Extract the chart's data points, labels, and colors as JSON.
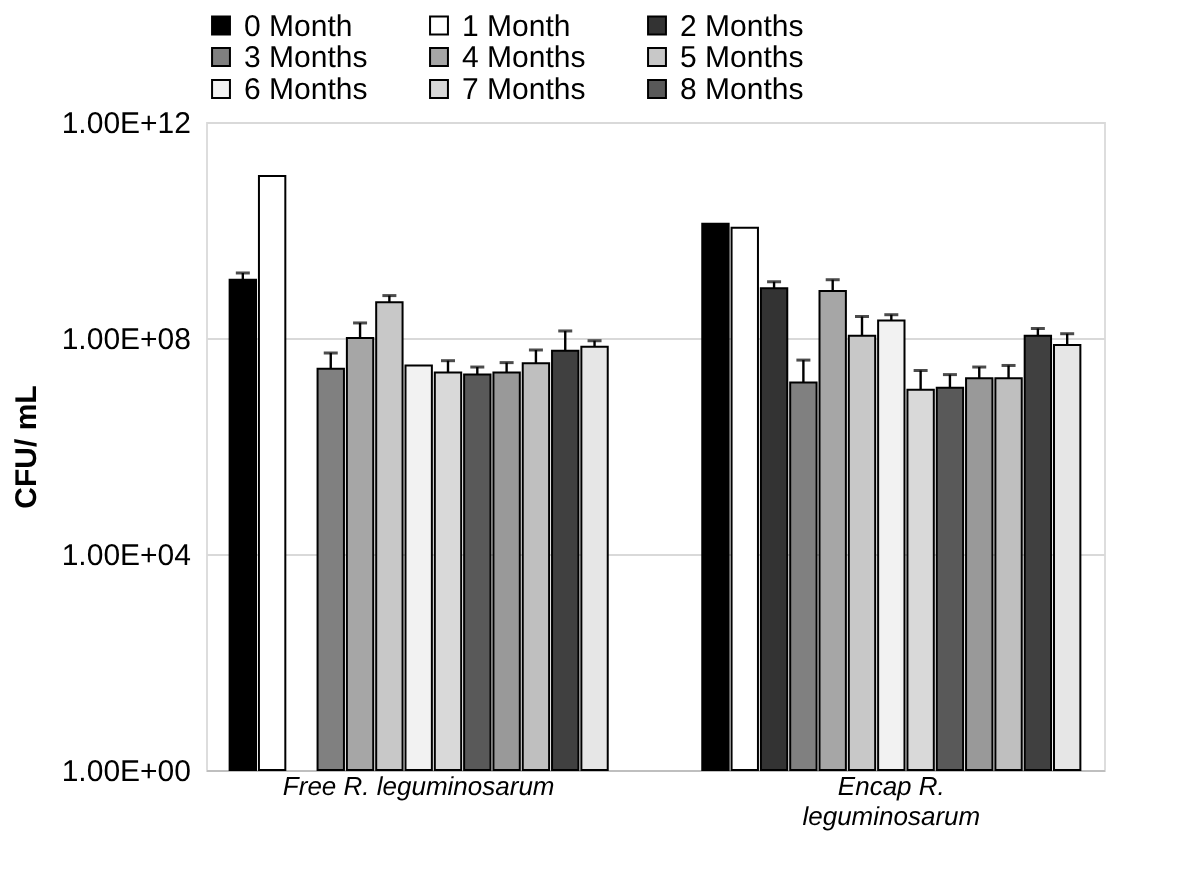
{
  "chart_data": {
    "type": "bar",
    "ylabel": "CFU/ mL",
    "categories": [
      "Free R. leguminosarum",
      "Encap R. leguminosarum"
    ],
    "log": true,
    "ylim": [
      1,
      1000000000000.0
    ],
    "yticks": [
      {
        "value": 1,
        "label": "1.00E+00"
      },
      {
        "value": 10000,
        "label": "1.00E+04"
      },
      {
        "value": 100000000,
        "label": "1.00E+08"
      },
      {
        "value": 1000000000000,
        "label": "1.00E+12"
      }
    ],
    "grid": "y",
    "legend": "top",
    "series": [
      {
        "name": "0 Month",
        "color": "#000000",
        "values": [
          1200000000.0,
          13000000000.0
        ],
        "errors": [
          [
            1200000000.0,
            1600000000.0
          ],
          null
        ]
      },
      {
        "name": "1 Month",
        "color": "#ffffff",
        "values": [
          100000000000.0,
          11000000000.0
        ],
        "errors": [
          null,
          null
        ]
      },
      {
        "name": "2 Months",
        "color": "#333333",
        "values": [
          null,
          830000000.0
        ],
        "errors": [
          null,
          [
            830000000.0,
            1100000000.0
          ]
        ]
      },
      {
        "name": "3 Months",
        "color": "#808080",
        "values": [
          27000000.0,
          15000000.0
        ],
        "errors": [
          [
            27000000.0,
            53000000.0
          ],
          [
            15000000.0,
            39000000.0
          ]
        ]
      },
      {
        "name": "4 Months",
        "color": "#a6a6a6",
        "values": [
          100000000.0,
          740000000.0
        ],
        "errors": [
          [
            100000000.0,
            190000000.0
          ],
          [
            740000000.0,
            1200000000.0
          ]
        ]
      },
      {
        "name": "5 Months",
        "color": "#c8c8c8",
        "values": [
          460000000.0,
          110000000.0
        ],
        "errors": [
          [
            460000000.0,
            610000000.0
          ],
          [
            110000000.0,
            250000000.0
          ]
        ]
      },
      {
        "name": "6 Months",
        "color": "#f2f2f2",
        "values": [
          31000000.0,
          210000000.0
        ],
        "errors": [
          null,
          [
            210000000.0,
            270000000.0
          ]
        ]
      },
      {
        "name": "7 Months",
        "color": "#d9d9d9",
        "values": [
          23000000.0,
          11000000.0
        ],
        "errors": [
          [
            23000000.0,
            38000000.0
          ],
          [
            11000000.0,
            25000000.0
          ]
        ]
      },
      {
        "name": "8 Months",
        "color": "#595959",
        "values": [
          21000000.0,
          12000000.0
        ],
        "errors": [
          [
            21000000.0,
            29000000.0
          ],
          [
            12000000.0,
            21000000.0
          ]
        ]
      },
      {
        "color": "#999999",
        "values": [
          23000000.0,
          18000000.0
        ],
        "errors": [
          [
            23000000.0,
            35000000.0
          ],
          [
            18000000.0,
            29000000.0
          ]
        ]
      },
      {
        "color": "#bfbfbf",
        "values": [
          34000000.0,
          18000000.0
        ],
        "errors": [
          [
            34000000.0,
            60000000.0
          ],
          [
            18000000.0,
            31000000.0
          ]
        ]
      },
      {
        "color": "#404040",
        "values": [
          58000000.0,
          110000000.0
        ],
        "errors": [
          [
            58000000.0,
            135000000.0
          ],
          [
            110000000.0,
            150000000.0
          ]
        ]
      },
      {
        "color": "#e6e6e6",
        "values": [
          69000000.0,
          74000000.0
        ],
        "errors": [
          [
            69000000.0,
            89000000.0
          ],
          [
            74000000.0,
            120000000.0
          ]
        ]
      }
    ]
  }
}
